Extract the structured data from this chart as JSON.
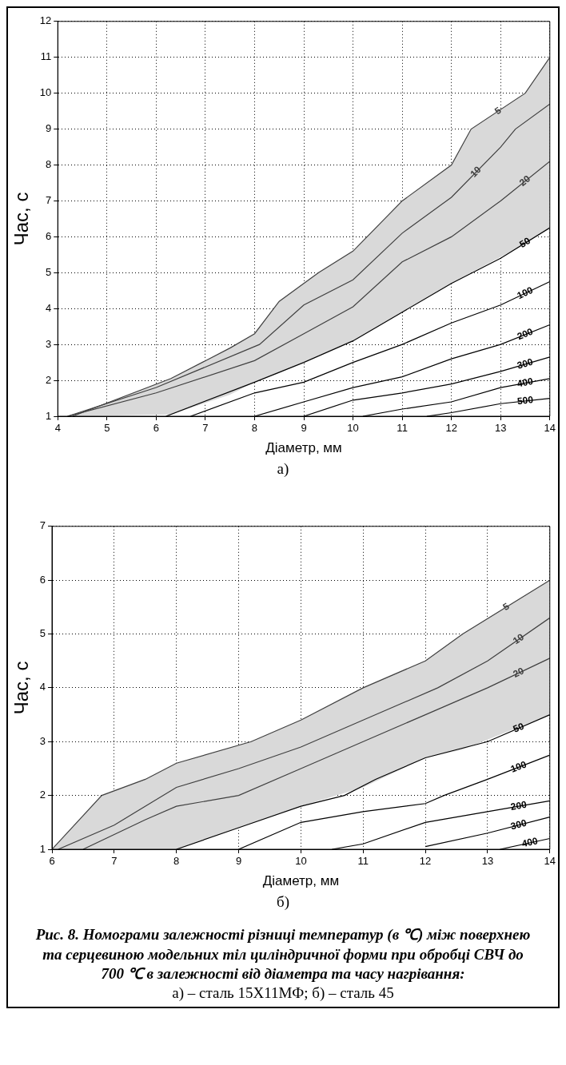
{
  "chart_data": [
    {
      "type": "line",
      "xlabel": "Діаметр, мм",
      "ylabel": "Час, с",
      "annotations": [
        "а)"
      ],
      "xlim": [
        4,
        14
      ],
      "ylim": [
        1,
        12
      ],
      "xticks": [
        4,
        5,
        6,
        7,
        8,
        9,
        10,
        11,
        12,
        13,
        14
      ],
      "yticks": [
        1,
        2,
        3,
        4,
        5,
        6,
        7,
        8,
        9,
        10,
        11,
        12
      ],
      "grid": true,
      "legend": false,
      "marker": "none",
      "series": [
        {
          "name": "5",
          "color": "#404040",
          "x": [
            4.3,
            6.3,
            7.5,
            8,
            8.5,
            9.3,
            10,
            11,
            12,
            12.4,
            13.5,
            14
          ],
          "values": [
            1,
            2.05,
            2.9,
            3.3,
            4.2,
            5,
            5.6,
            7,
            8,
            9,
            10,
            11
          ],
          "upper": [
            1,
            2.05,
            2.9,
            3.3,
            4.2,
            5,
            5.6,
            7,
            8,
            9,
            10,
            11
          ],
          "lower": [
            1,
            1.05,
            1.6,
            1.95,
            2.2,
            2.7,
            3.1,
            3.9,
            4.7,
            5.0,
            5.8,
            6.25
          ]
        },
        {
          "name": "10",
          "color": "#404040",
          "x": [
            4.2,
            6,
            8.1,
            9,
            10,
            11,
            12,
            13,
            13.3,
            14
          ],
          "values": [
            1,
            1.8,
            3,
            4.1,
            4.8,
            6.1,
            7.1,
            8.5,
            9,
            9.7
          ]
        },
        {
          "name": "20",
          "color": "#404040",
          "x": [
            4.2,
            6,
            8,
            9,
            10,
            11,
            12,
            13,
            14
          ],
          "values": [
            1,
            1.65,
            2.55,
            3.3,
            4.05,
            5.3,
            6,
            7,
            8.1
          ]
        },
        {
          "name": "50",
          "color": "#000000",
          "x": [
            6.2,
            8,
            9,
            10,
            11,
            12,
            13,
            14
          ],
          "values": [
            1,
            1.95,
            2.5,
            3.1,
            3.9,
            4.7,
            5.4,
            6.25
          ]
        },
        {
          "name": "100",
          "color": "#000000",
          "x": [
            6.7,
            8,
            9,
            10,
            11,
            12,
            13,
            14
          ],
          "values": [
            1,
            1.65,
            1.95,
            2.5,
            3,
            3.6,
            4.1,
            4.75
          ]
        },
        {
          "name": "200",
          "color": "#000000",
          "x": [
            8,
            9,
            10,
            11,
            12,
            13,
            14
          ],
          "values": [
            1,
            1.4,
            1.8,
            2.1,
            2.6,
            3,
            3.55
          ]
        },
        {
          "name": "300",
          "color": "#000000",
          "x": [
            9,
            10,
            11,
            12,
            13,
            14
          ],
          "values": [
            1,
            1.45,
            1.65,
            1.9,
            2.25,
            2.65
          ]
        },
        {
          "name": "400",
          "color": "#000000",
          "x": [
            10.2,
            11,
            12,
            13,
            14
          ],
          "values": [
            1,
            1.2,
            1.4,
            1.8,
            2.05
          ]
        },
        {
          "name": "500",
          "color": "#000000",
          "x": [
            11.5,
            12,
            13,
            14
          ],
          "values": [
            1,
            1.1,
            1.35,
            1.5
          ]
        }
      ]
    },
    {
      "type": "line",
      "xlabel": "Діаметр, мм",
      "ylabel": "Час, с",
      "annotations": [
        "б)",
        "Рис. 8. Номограми залежності різниці температур (в ℃) між поверхнею та серцевиною модельних тіл циліндричної форми при обробці СВЧ до 700 ℃ в залежності від діаметра та часу нагрівання:",
        "а) – сталь 15Х11МФ; б) – сталь 45"
      ],
      "xlim": [
        6,
        14
      ],
      "ylim": [
        1,
        7
      ],
      "xticks": [
        6,
        7,
        8,
        9,
        10,
        11,
        12,
        13,
        14
      ],
      "yticks": [
        1,
        2,
        3,
        4,
        5,
        6,
        7
      ],
      "grid": true,
      "legend": false,
      "marker": "none",
      "series": [
        {
          "name": "5",
          "color": "#404040",
          "x": [
            6,
            6.8,
            7.5,
            8,
            9.2,
            10,
            11,
            12,
            12.6,
            14
          ],
          "values": [
            1,
            2,
            2.3,
            2.6,
            3,
            3.4,
            4,
            4.5,
            5,
            6
          ],
          "upper": [
            1,
            2,
            2.3,
            2.6,
            3,
            3.4,
            4,
            4.5,
            5,
            6
          ],
          "lower": [
            1,
            1,
            1,
            1,
            1.48,
            1.8,
            2.15,
            2.7,
            2.85,
            3.5
          ]
        },
        {
          "name": "10",
          "color": "#404040",
          "x": [
            6.1,
            7,
            8,
            9,
            10,
            11,
            12.2,
            13,
            14
          ],
          "values": [
            1,
            1.45,
            2.15,
            2.5,
            2.9,
            3.4,
            4,
            4.5,
            5.3
          ]
        },
        {
          "name": "20",
          "color": "#404040",
          "x": [
            6.5,
            7.5,
            8,
            9,
            10,
            11,
            12,
            13,
            14
          ],
          "values": [
            1,
            1.55,
            1.8,
            2,
            2.5,
            3,
            3.5,
            4,
            4.55
          ]
        },
        {
          "name": "50",
          "color": "#000000",
          "x": [
            8,
            9,
            10,
            10.7,
            11.2,
            12,
            13,
            14
          ],
          "values": [
            1,
            1.4,
            1.8,
            2,
            2.3,
            2.7,
            3,
            3.5
          ]
        },
        {
          "name": "100",
          "color": "#000000",
          "x": [
            9,
            10,
            11,
            12,
            12.3,
            13,
            14
          ],
          "values": [
            1,
            1.5,
            1.7,
            1.85,
            2,
            2.3,
            2.75
          ]
        },
        {
          "name": "200",
          "color": "#000000",
          "x": [
            10.5,
            11,
            12,
            13,
            14
          ],
          "values": [
            1,
            1.1,
            1.5,
            1.7,
            1.9
          ]
        },
        {
          "name": "300",
          "color": "#000000",
          "x": [
            12,
            13,
            14
          ],
          "values": [
            1.05,
            1.3,
            1.6
          ]
        },
        {
          "name": "400",
          "color": "#000000",
          "x": [
            13.2,
            14
          ],
          "values": [
            1,
            1.2
          ]
        }
      ]
    }
  ]
}
